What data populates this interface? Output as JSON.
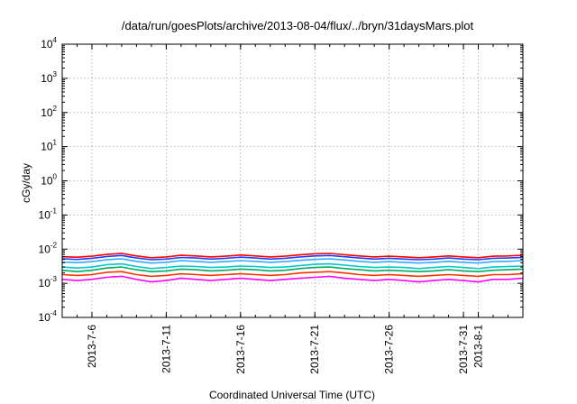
{
  "chart_data": {
    "type": "line",
    "title": "/data/run/goesPlots/archive/2013-08-04/flux/../bryn/31daysMars.plot",
    "xlabel": "Coordinated Universal Time (UTC)",
    "ylabel": "cGy/day",
    "y_scale": "log",
    "ylim": [
      0.0001,
      10000
    ],
    "y_ticks": [
      {
        "base": "10",
        "exp": "-4",
        "value": 0.0001
      },
      {
        "base": "10",
        "exp": "-3",
        "value": 0.001
      },
      {
        "base": "10",
        "exp": "-2",
        "value": 0.01
      },
      {
        "base": "10",
        "exp": "-1",
        "value": 0.1
      },
      {
        "base": "10",
        "exp": "0",
        "value": 1
      },
      {
        "base": "10",
        "exp": "1",
        "value": 10
      },
      {
        "base": "10",
        "exp": "2",
        "value": 100
      },
      {
        "base": "10",
        "exp": "3",
        "value": 1000
      },
      {
        "base": "10",
        "exp": "4",
        "value": 10000
      }
    ],
    "xlim": [
      "2013-07-04",
      "2013-08-04"
    ],
    "x_ticks": [
      "2013-7-6",
      "2013-7-11",
      "2013-7-16",
      "2013-7-21",
      "2013-7-26",
      "2013-7-31",
      "2013-8-1"
    ],
    "x_tick_dates": [
      "2013-07-06",
      "2013-07-11",
      "2013-07-16",
      "2013-07-21",
      "2013-07-26",
      "2013-07-31",
      "2013-08-01"
    ],
    "grid": true,
    "series": [
      {
        "color": "#ff00ff",
        "values": [
          0.0013,
          0.0012,
          0.0013,
          0.0015,
          0.0016,
          0.0013,
          0.0011,
          0.0012,
          0.0014,
          0.0013,
          0.0012,
          0.0013,
          0.0014,
          0.0013,
          0.0012,
          0.0013,
          0.0014,
          0.0015,
          0.0016,
          0.0014,
          0.0013,
          0.0012,
          0.0013,
          0.0012,
          0.0011,
          0.0012,
          0.0013,
          0.0012,
          0.0011,
          0.0013,
          0.0013,
          0.0014
        ]
      },
      {
        "color": "#ff3300",
        "values": [
          0.0018,
          0.0017,
          0.0018,
          0.0021,
          0.0022,
          0.0018,
          0.0016,
          0.0017,
          0.0019,
          0.0018,
          0.0017,
          0.0018,
          0.0019,
          0.0018,
          0.0017,
          0.0018,
          0.002,
          0.0021,
          0.0022,
          0.002,
          0.0018,
          0.0017,
          0.0018,
          0.0017,
          0.0016,
          0.0017,
          0.0018,
          0.0017,
          0.0016,
          0.0018,
          0.0018,
          0.0019
        ]
      },
      {
        "color": "#00aa66",
        "values": [
          0.0024,
          0.0022,
          0.0024,
          0.0028,
          0.003,
          0.0025,
          0.0022,
          0.0023,
          0.0026,
          0.0025,
          0.0023,
          0.0024,
          0.0026,
          0.0025,
          0.0023,
          0.0024,
          0.0027,
          0.0029,
          0.003,
          0.0027,
          0.0025,
          0.0023,
          0.0024,
          0.0023,
          0.0022,
          0.0023,
          0.0025,
          0.0023,
          0.0022,
          0.0024,
          0.0025,
          0.0026
        ]
      },
      {
        "color": "#00c8c8",
        "values": [
          0.003,
          0.0028,
          0.003,
          0.0035,
          0.0037,
          0.0031,
          0.0027,
          0.0029,
          0.0032,
          0.0031,
          0.0029,
          0.003,
          0.0032,
          0.0031,
          0.0029,
          0.003,
          0.0033,
          0.0036,
          0.0037,
          0.0034,
          0.0031,
          0.0029,
          0.003,
          0.0029,
          0.0027,
          0.0029,
          0.0031,
          0.0029,
          0.0027,
          0.003,
          0.0031,
          0.0032
        ]
      },
      {
        "color": "#33aaff",
        "values": [
          0.0042,
          0.004,
          0.0043,
          0.0049,
          0.0052,
          0.0044,
          0.0039,
          0.0041,
          0.0046,
          0.0044,
          0.0041,
          0.0043,
          0.0046,
          0.0044,
          0.0041,
          0.0043,
          0.0047,
          0.005,
          0.0052,
          0.0048,
          0.0044,
          0.0041,
          0.0043,
          0.0041,
          0.0039,
          0.0041,
          0.0044,
          0.0041,
          0.0039,
          0.0043,
          0.0044,
          0.0046
        ]
      },
      {
        "color": "#1f3fff",
        "values": [
          0.0052,
          0.005,
          0.0054,
          0.0061,
          0.0065,
          0.0055,
          0.0049,
          0.0051,
          0.0057,
          0.0055,
          0.0051,
          0.0054,
          0.0058,
          0.0055,
          0.0051,
          0.0054,
          0.0059,
          0.0063,
          0.0065,
          0.006,
          0.0055,
          0.0051,
          0.0054,
          0.0051,
          0.0049,
          0.0051,
          0.0055,
          0.0051,
          0.0049,
          0.0054,
          0.0055,
          0.0057
        ]
      },
      {
        "color": "#ff0000",
        "values": [
          0.006,
          0.0058,
          0.0062,
          0.007,
          0.0075,
          0.0063,
          0.0056,
          0.0059,
          0.0066,
          0.0063,
          0.0059,
          0.0062,
          0.0067,
          0.0063,
          0.0059,
          0.0062,
          0.0068,
          0.0073,
          0.0075,
          0.0069,
          0.0063,
          0.0059,
          0.0062,
          0.0059,
          0.0056,
          0.0059,
          0.0063,
          0.0059,
          0.0056,
          0.0062,
          0.0063,
          0.0066
        ]
      }
    ]
  }
}
